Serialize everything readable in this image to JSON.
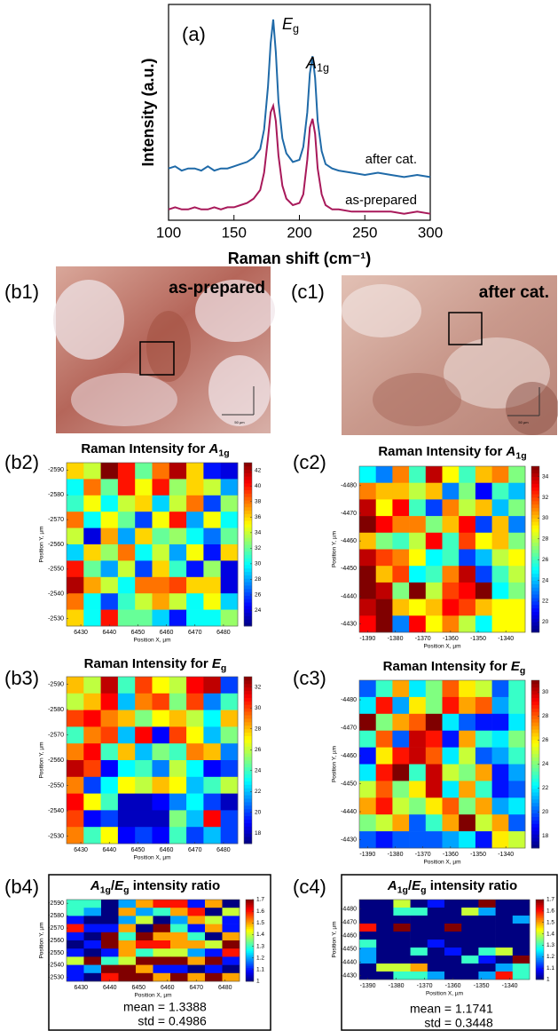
{
  "chart_data": [
    {
      "type": "line",
      "panel_label": "(a)",
      "xlabel": "Raman shift (cm⁻¹)",
      "ylabel": "Intensity (a.u.)",
      "x": [
        100,
        105,
        110,
        115,
        120,
        125,
        130,
        135,
        140,
        145,
        150,
        155,
        160,
        165,
        170,
        173,
        176,
        178,
        180,
        182,
        184,
        187,
        190,
        195,
        200,
        203,
        206,
        208,
        210,
        212,
        214,
        217,
        220,
        225,
        230,
        240,
        250,
        260,
        270,
        280,
        290,
        300
      ],
      "series": [
        {
          "name": "after cat.",
          "color": "#1f6aa8",
          "values": [
            0.24,
            0.25,
            0.23,
            0.24,
            0.24,
            0.23,
            0.25,
            0.23,
            0.24,
            0.24,
            0.25,
            0.26,
            0.27,
            0.29,
            0.33,
            0.42,
            0.62,
            0.82,
            0.93,
            0.78,
            0.55,
            0.38,
            0.31,
            0.27,
            0.28,
            0.34,
            0.5,
            0.68,
            0.76,
            0.66,
            0.46,
            0.32,
            0.26,
            0.24,
            0.23,
            0.22,
            0.21,
            0.22,
            0.21,
            0.2,
            0.21,
            0.2
          ]
        },
        {
          "name": "as-prepared",
          "color": "#a8195a",
          "values": [
            0.05,
            0.06,
            0.05,
            0.05,
            0.06,
            0.05,
            0.05,
            0.06,
            0.05,
            0.06,
            0.06,
            0.07,
            0.08,
            0.1,
            0.14,
            0.22,
            0.38,
            0.5,
            0.53,
            0.46,
            0.3,
            0.16,
            0.1,
            0.07,
            0.08,
            0.12,
            0.28,
            0.43,
            0.47,
            0.4,
            0.24,
            0.12,
            0.07,
            0.05,
            0.05,
            0.04,
            0.04,
            0.04,
            0.04,
            0.03,
            0.04,
            0.03
          ]
        }
      ],
      "annotations": [
        [
          {
            "text": "E",
            "style": "italic"
          },
          {
            "text": "g",
            "style": "sub"
          }
        ],
        [
          {
            "text": "A",
            "style": "italic"
          },
          {
            "text": "1g",
            "style": "sub"
          }
        ]
      ],
      "xlim": [
        100,
        300
      ],
      "xticks": [
        100,
        150,
        200,
        250,
        300
      ],
      "ylim": [
        0,
        1
      ]
    },
    {
      "type": "heatmap",
      "panel_label": "(b2)",
      "title": [
        {
          "text": "Raman Intensity for "
        },
        {
          "text": "A",
          "style": "italic"
        },
        {
          "text": "1g",
          "style": "sub"
        }
      ],
      "xlabel": "Position X, µm",
      "ylabel": "Position Y, µm",
      "xlim": [
        6425,
        6485
      ],
      "xticks": [
        6430,
        6440,
        6450,
        6460,
        6470,
        6480
      ],
      "ylim": [
        -2593,
        -2527
      ],
      "y_inverted": true,
      "yticks": [
        -2590,
        -2580,
        -2570,
        -2560,
        -2550,
        -2540,
        -2530
      ],
      "zlim": [
        22,
        43
      ],
      "zticks": [
        24,
        26,
        28,
        30,
        32,
        34,
        36,
        38,
        40,
        42
      ],
      "colormap": "jet",
      "z": [
        [
          36,
          34,
          43,
          40,
          32,
          38,
          42,
          36,
          25,
          24
        ],
        [
          30,
          38,
          32,
          40,
          35,
          40,
          33,
          36,
          34,
          28
        ],
        [
          31,
          35,
          30,
          34,
          36,
          29,
          34,
          38,
          26,
          33
        ],
        [
          38,
          30,
          35,
          32,
          26,
          35,
          40,
          28,
          35,
          30
        ],
        [
          34,
          24,
          37,
          28,
          36,
          32,
          33,
          30,
          27,
          32
        ],
        [
          29,
          36,
          33,
          38,
          30,
          34,
          28,
          35,
          25,
          36
        ],
        [
          40,
          32,
          28,
          34,
          26,
          36,
          31,
          25,
          33,
          24
        ],
        [
          42,
          37,
          34,
          30,
          38,
          38,
          39,
          36,
          36,
          24
        ],
        [
          38,
          30,
          26,
          31,
          34,
          37,
          34,
          30,
          35,
          29
        ],
        [
          36,
          30,
          40,
          32,
          32,
          29,
          25,
          30,
          30,
          33
        ]
      ]
    },
    {
      "type": "heatmap",
      "panel_label": "(c2)",
      "title": [
        {
          "text": "Raman Intensity for "
        },
        {
          "text": "A",
          "style": "italic"
        },
        {
          "text": "1g",
          "style": "sub"
        }
      ],
      "xlabel": "Position X, µm",
      "ylabel": "Position Y, µm",
      "xlim": [
        -1393,
        -1333
      ],
      "xticks": [
        -1390,
        -1380,
        -1370,
        -1360,
        -1350,
        -1340
      ],
      "ylim": [
        -4487,
        -4427
      ],
      "y_inverted": true,
      "yticks": [
        -4480,
        -4470,
        -4460,
        -4450,
        -4440,
        -4430
      ],
      "zlim": [
        19,
        35
      ],
      "zticks": [
        20,
        22,
        24,
        26,
        28,
        30,
        32,
        34
      ],
      "colormap": "jet",
      "z": [
        [
          25,
          23,
          31,
          26,
          34,
          29,
          26,
          30,
          31,
          27
        ],
        [
          31,
          30,
          30,
          28,
          30,
          23,
          27,
          21,
          26,
          24
        ],
        [
          34,
          29,
          33,
          26,
          22,
          31,
          28,
          30,
          24,
          27
        ],
        [
          35,
          33,
          31,
          31,
          27,
          30,
          33,
          22,
          30,
          23
        ],
        [
          30,
          27,
          26,
          28,
          33,
          26,
          32,
          29,
          30,
          27
        ],
        [
          34,
          32,
          31,
          29,
          25,
          26,
          22,
          24,
          28,
          29
        ],
        [
          35,
          30,
          32,
          25,
          26,
          31,
          34,
          22,
          26,
          28
        ],
        [
          35,
          34,
          27,
          35,
          28,
          32,
          33,
          35,
          25,
          27
        ],
        [
          34,
          35,
          30,
          29,
          30,
          33,
          32,
          30,
          29,
          29
        ],
        [
          33,
          35,
          23,
          33,
          29,
          31,
          28,
          25,
          29,
          29
        ]
      ]
    },
    {
      "type": "heatmap",
      "panel_label": "(b3)",
      "title": [
        {
          "text": "Raman Intensity for "
        },
        {
          "text": "E",
          "style": "italic"
        },
        {
          "text": "g",
          "style": "sub"
        }
      ],
      "xlabel": "Position X, µm",
      "ylabel": "Position Y, µm",
      "xlim": [
        6425,
        6485
      ],
      "xticks": [
        6430,
        6440,
        6450,
        6460,
        6470,
        6480
      ],
      "ylim": [
        -2593,
        -2527
      ],
      "y_inverted": true,
      "yticks": [
        -2590,
        -2580,
        -2570,
        -2560,
        -2550,
        -2540,
        -2530
      ],
      "zlim": [
        17,
        33
      ],
      "zticks": [
        18,
        20,
        22,
        24,
        26,
        28,
        30,
        32
      ],
      "colormap": "jet",
      "z": [
        [
          28,
          26,
          32,
          24,
          30,
          27,
          26,
          31,
          32,
          20
        ],
        [
          26,
          28,
          31,
          22,
          29,
          30,
          25,
          30,
          21,
          24
        ],
        [
          30,
          31,
          29,
          28,
          25,
          27,
          28,
          26,
          23,
          28
        ],
        [
          24,
          29,
          30,
          22,
          31,
          19,
          30,
          27,
          22,
          25
        ],
        [
          29,
          31,
          24,
          28,
          22,
          25,
          24,
          29,
          28,
          21
        ],
        [
          32,
          30,
          19,
          23,
          24,
          21,
          26,
          23,
          19,
          20
        ],
        [
          29,
          20,
          23,
          27,
          26,
          28,
          27,
          22,
          24,
          26
        ],
        [
          31,
          27,
          24,
          18,
          18,
          19,
          21,
          23,
          20,
          18
        ],
        [
          30,
          19,
          20,
          18,
          18,
          18,
          25,
          22,
          31,
          20
        ],
        [
          29,
          24,
          27,
          19,
          20,
          19,
          24,
          20,
          22,
          20
        ]
      ]
    },
    {
      "type": "heatmap",
      "panel_label": "(c3)",
      "title": [
        {
          "text": "Raman Intensity for "
        },
        {
          "text": "E",
          "style": "italic"
        },
        {
          "text": "g",
          "style": "sub"
        }
      ],
      "xlabel": "Position X, µm",
      "ylabel": "Position Y, µm",
      "xlim": [
        -1393,
        -1333
      ],
      "xticks": [
        -1390,
        -1380,
        -1370,
        -1360,
        -1350,
        -1340
      ],
      "ylim": [
        -4487,
        -4427
      ],
      "y_inverted": true,
      "yticks": [
        -4480,
        -4470,
        -4460,
        -4450,
        -4440,
        -4430
      ],
      "zlim": [
        17,
        31
      ],
      "zticks": [
        18,
        20,
        22,
        24,
        26,
        28,
        30
      ],
      "colormap": "jet",
      "z": [
        [
          20,
          23,
          27,
          22,
          24,
          28,
          26,
          25,
          20,
          23
        ],
        [
          22,
          29,
          21,
          26,
          24,
          29,
          27,
          28,
          21,
          23
        ],
        [
          31,
          24,
          27,
          28,
          31,
          22,
          20,
          19,
          19,
          22
        ],
        [
          23,
          28,
          20,
          30,
          29,
          19,
          27,
          23,
          22,
          24
        ],
        [
          19,
          26,
          29,
          30,
          28,
          22,
          25,
          20,
          21,
          23
        ],
        [
          22,
          29,
          31,
          23,
          30,
          25,
          24,
          27,
          19,
          21
        ],
        [
          25,
          28,
          24,
          26,
          30,
          22,
          27,
          23,
          19,
          20
        ],
        [
          27,
          29,
          25,
          24,
          26,
          28,
          24,
          27,
          21,
          22
        ],
        [
          24,
          25,
          27,
          20,
          23,
          27,
          31,
          25,
          27,
          20
        ],
        [
          20,
          19,
          20,
          20,
          20,
          21,
          22,
          19,
          26,
          25
        ]
      ]
    },
    {
      "type": "heatmap",
      "panel_label": "(b4)",
      "title": [
        {
          "text": "A",
          "style": "italic"
        },
        {
          "text": "1g",
          "style": "sub"
        },
        {
          "text": "/"
        },
        {
          "text": "E",
          "style": "italic"
        },
        {
          "text": "g",
          "style": "sub"
        },
        {
          "text": " intensity ratio"
        }
      ],
      "xlabel": "Position X, µm",
      "ylabel": "Position Y, µm",
      "xlim": [
        6425,
        6485
      ],
      "xticks": [
        6430,
        6440,
        6450,
        6460,
        6470,
        6480
      ],
      "ylim": [
        -2593,
        -2527
      ],
      "y_inverted": true,
      "yticks": [
        -2590,
        -2580,
        -2570,
        -2560,
        -2550,
        -2540,
        -2530
      ],
      "zlim": [
        1,
        1.7
      ],
      "zticks": [
        1,
        1.1,
        1.2,
        1.3,
        1.4,
        1.5,
        1.6,
        1.7
      ],
      "colormap": "jet",
      "stats": [
        {
          "name": "mean",
          "sign": "=",
          "value": 1.3388
        },
        {
          "name": "std",
          "sign": "=",
          "value": 0.4986
        }
      ],
      "z": [
        [
          1.3,
          1.3,
          1.0,
          1.2,
          1.5,
          1.6,
          1.6,
          1.1,
          1.5,
          1.0
        ],
        [
          1.3,
          1.2,
          1.0,
          1.5,
          1.2,
          1.3,
          1.5,
          1.6,
          1.0,
          1.4
        ],
        [
          1.1,
          1.0,
          1.0,
          1.2,
          1.4,
          1.0,
          1.2,
          1.5,
          1.4,
          1.1
        ],
        [
          1.6,
          1.1,
          1.1,
          1.5,
          1.0,
          1.7,
          1.3,
          1.1,
          1.5,
          1.1
        ],
        [
          1.1,
          1.0,
          1.7,
          1.3,
          1.7,
          1.5,
          1.5,
          1.3,
          1.0,
          1.5
        ],
        [
          1.0,
          1.1,
          1.7,
          1.5,
          1.6,
          1.6,
          1.5,
          1.5,
          1.4,
          1.7
        ],
        [
          1.1,
          1.0,
          1.1,
          1.5,
          1.3,
          1.4,
          1.4,
          1.2,
          1.1,
          1.6
        ],
        [
          1.4,
          1.7,
          1.3,
          1.4,
          1.7,
          1.7,
          1.7,
          1.5,
          1.7,
          1.1
        ],
        [
          1.1,
          1.2,
          1.7,
          1.7,
          1.5,
          1.1,
          1.1,
          1.0,
          1.1,
          1.0
        ],
        [
          1.1,
          1.0,
          1.6,
          1.7,
          1.7,
          1.5,
          1.7,
          1.5,
          1.7,
          1.5
        ]
      ]
    },
    {
      "type": "heatmap",
      "panel_label": "(c4)",
      "title": [
        {
          "text": "A",
          "style": "italic"
        },
        {
          "text": "1g",
          "style": "sub"
        },
        {
          "text": "/"
        },
        {
          "text": "E",
          "style": "italic"
        },
        {
          "text": "g",
          "style": "sub"
        },
        {
          "text": " intensity ratio"
        }
      ],
      "xlabel": "Position X, µm",
      "ylabel": "Position Y, µm",
      "xlim": [
        -1393,
        -1333
      ],
      "xticks": [
        -1390,
        -1380,
        -1370,
        -1360,
        -1350,
        -1340
      ],
      "ylim": [
        -4487,
        -4427
      ],
      "y_inverted": true,
      "yticks": [
        -4480,
        -4470,
        -4460,
        -4450,
        -4440,
        -4430
      ],
      "zlim": [
        1,
        1.7
      ],
      "zticks": [
        1,
        1.1,
        1.2,
        1.3,
        1.4,
        1.5,
        1.6,
        1.7
      ],
      "colormap": "jet",
      "stats": [
        {
          "name": "mean",
          "sign": "=",
          "value": 1.1741
        },
        {
          "name": "std",
          "sign": "=",
          "value": 0.3448
        }
      ],
      "z": [
        [
          1.0,
          1.0,
          1.4,
          1.0,
          1.1,
          1.0,
          1.0,
          1.7,
          1.0,
          1.0
        ],
        [
          1.0,
          1.0,
          1.3,
          1.3,
          1.0,
          1.0,
          1.4,
          1.2,
          1.0,
          1.0
        ],
        [
          1.0,
          1.0,
          1.0,
          1.0,
          1.0,
          1.0,
          1.0,
          1.0,
          1.0,
          1.2
        ],
        [
          1.6,
          1.0,
          1.7,
          1.0,
          1.0,
          1.7,
          1.0,
          1.0,
          1.0,
          1.0
        ],
        [
          1.0,
          1.0,
          1.0,
          1.0,
          1.0,
          1.0,
          1.0,
          1.0,
          1.0,
          1.0
        ],
        [
          1.3,
          1.0,
          1.0,
          1.0,
          1.1,
          1.0,
          1.0,
          1.0,
          1.0,
          1.0
        ],
        [
          1.2,
          1.0,
          1.0,
          1.3,
          1.0,
          1.1,
          1.0,
          1.3,
          1.4,
          1.0
        ],
        [
          1.2,
          1.0,
          1.0,
          1.0,
          1.0,
          1.0,
          1.3,
          1.1,
          1.0,
          1.7
        ],
        [
          1.0,
          1.4,
          1.4,
          1.5,
          1.0,
          1.0,
          1.0,
          1.0,
          1.2,
          1.3
        ],
        [
          1.0,
          1.0,
          1.3,
          1.3,
          1.2,
          1.0,
          1.0,
          1.2,
          1.6,
          1.3
        ]
      ]
    }
  ],
  "images": [
    {
      "label": "(b1)",
      "caption": "as-prepared",
      "scale_bar": "50 µm"
    },
    {
      "label": "(c1)",
      "caption": "after cat.",
      "scale_bar": "50 µm"
    }
  ]
}
